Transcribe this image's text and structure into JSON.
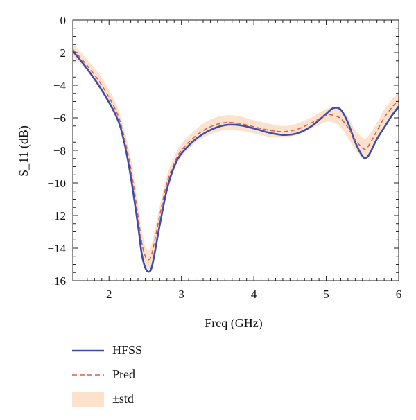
{
  "chart_data": {
    "type": "line",
    "title": "",
    "xlabel": "Freq (GHz)",
    "ylabel": "S_11 (dB)",
    "xlim": [
      1.5,
      6
    ],
    "ylim": [
      -16,
      0
    ],
    "xticks": [
      2,
      3,
      4,
      5,
      6
    ],
    "yticks": [
      0,
      -2,
      -4,
      -6,
      -8,
      -10,
      -12,
      -14,
      -16
    ],
    "grid": false,
    "legend_position": "bottom-left, below plot",
    "x": [
      1.5,
      1.7,
      1.9,
      2.1,
      2.2,
      2.3,
      2.4,
      2.45,
      2.5,
      2.55,
      2.6,
      2.7,
      2.8,
      2.9,
      3.0,
      3.2,
      3.4,
      3.6,
      3.8,
      4.0,
      4.2,
      4.4,
      4.6,
      4.8,
      5.0,
      5.1,
      5.2,
      5.3,
      5.4,
      5.5,
      5.55,
      5.6,
      5.7,
      5.8,
      5.9,
      6.0
    ],
    "series": [
      {
        "name": "HFSS",
        "color": "#3a4dab",
        "style": "solid",
        "values": [
          -1.9,
          -3.0,
          -4.3,
          -5.9,
          -7.3,
          -9.6,
          -12.6,
          -14.3,
          -15.2,
          -15.45,
          -15.0,
          -12.6,
          -10.4,
          -9.0,
          -8.2,
          -7.3,
          -6.75,
          -6.45,
          -6.45,
          -6.65,
          -6.9,
          -7.05,
          -6.95,
          -6.5,
          -5.75,
          -5.4,
          -5.5,
          -6.3,
          -7.5,
          -8.35,
          -8.45,
          -8.2,
          -7.3,
          -6.6,
          -5.9,
          -5.3
        ]
      },
      {
        "name": "Pred",
        "color": "#e05a4f",
        "style": "dashed",
        "values": [
          -1.8,
          -2.8,
          -4.0,
          -5.6,
          -7.0,
          -9.1,
          -12.0,
          -13.6,
          -14.5,
          -14.7,
          -14.2,
          -12.0,
          -10.0,
          -8.8,
          -8.0,
          -7.1,
          -6.55,
          -6.3,
          -6.35,
          -6.55,
          -6.75,
          -6.85,
          -6.7,
          -6.3,
          -5.85,
          -5.85,
          -6.05,
          -6.6,
          -7.35,
          -7.85,
          -7.9,
          -7.6,
          -6.8,
          -6.0,
          -5.4,
          -4.9
        ]
      }
    ],
    "band": {
      "name": "±std",
      "color": "#fce2cc",
      "lower": [
        -2.2,
        -3.15,
        -4.45,
        -6.05,
        -7.45,
        -9.7,
        -12.7,
        -14.3,
        -15.15,
        -15.3,
        -14.85,
        -12.55,
        -10.45,
        -9.2,
        -8.4,
        -7.5,
        -7.0,
        -6.75,
        -6.8,
        -6.95,
        -7.15,
        -7.2,
        -7.05,
        -6.65,
        -6.25,
        -6.3,
        -6.6,
        -7.25,
        -7.95,
        -8.5,
        -8.55,
        -8.2,
        -7.3,
        -6.5,
        -5.9,
        -5.35
      ],
      "upper": [
        -1.4,
        -2.45,
        -3.55,
        -5.15,
        -6.55,
        -8.5,
        -11.3,
        -12.9,
        -13.85,
        -14.1,
        -13.55,
        -11.45,
        -9.55,
        -8.4,
        -7.6,
        -6.7,
        -6.1,
        -5.85,
        -5.9,
        -6.15,
        -6.35,
        -6.5,
        -6.35,
        -5.95,
        -5.45,
        -5.4,
        -5.5,
        -5.95,
        -6.75,
        -7.2,
        -7.25,
        -7.0,
        -6.3,
        -5.5,
        -4.9,
        -4.45
      ]
    }
  }
}
